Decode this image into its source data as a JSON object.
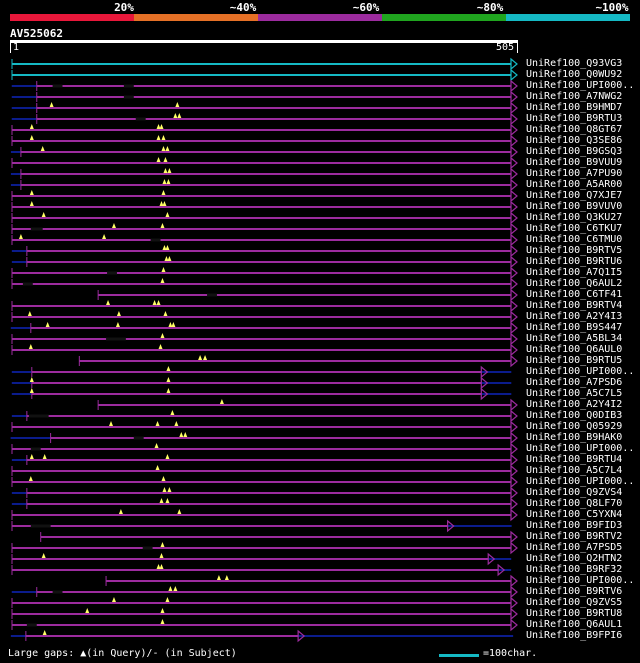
{
  "identity_legend": {
    "labels": [
      "20%",
      "~40%",
      "~60%",
      "~80%",
      "~100%"
    ],
    "colors": [
      "#e8173a",
      "#e57026",
      "#9c2b9e",
      "#20a51f",
      "#15b9c4"
    ]
  },
  "query": {
    "id": "AV525062",
    "start": "1",
    "end": "505",
    "length": 505
  },
  "hits": [
    {
      "id": "UniRef100_Q93VG3",
      "start": 1,
      "end": 505,
      "color": "#15b9c4",
      "pre": 0,
      "ins": []
    },
    {
      "id": "UniRef100_Q0WU92",
      "start": 1,
      "end": 505,
      "color": "#15b9c4",
      "pre": 0,
      "ins": []
    },
    {
      "id": "UniRef100_UPI000..",
      "start": 26,
      "end": 505,
      "color": "#9c2b9e",
      "pre": 25,
      "ins": [],
      "gaps": [
        [
          42,
          52
        ],
        [
          114,
          124
        ]
      ]
    },
    {
      "id": "UniRef100_A7NWG2",
      "start": 26,
      "end": 505,
      "color": "#9c2b9e",
      "pre": 25,
      "ins": [],
      "gaps": [
        [
          114,
          124
        ]
      ]
    },
    {
      "id": "UniRef100_B9HMD7",
      "start": 26,
      "end": 505,
      "color": "#9c2b9e",
      "pre": 25,
      "ins": [
        41,
        168
      ]
    },
    {
      "id": "UniRef100_B9RTU3",
      "start": 26,
      "end": 505,
      "color": "#9c2b9e",
      "pre": 25,
      "ins": [
        166,
        170
      ],
      "gaps": [
        [
          126,
          136
        ]
      ]
    },
    {
      "id": "UniRef100_Q8GT67",
      "start": 1,
      "end": 505,
      "color": "#9c2b9e",
      "pre": 0,
      "ins": [
        21,
        149,
        152
      ]
    },
    {
      "id": "UniRef100_Q3SE86",
      "start": 1,
      "end": 505,
      "color": "#9c2b9e",
      "pre": 0,
      "ins": [
        21,
        149,
        154
      ]
    },
    {
      "id": "UniRef100_B9GSQ3",
      "start": 10,
      "end": 505,
      "color": "#9c2b9e",
      "pre": 10,
      "ins": [
        32,
        154,
        158
      ]
    },
    {
      "id": "UniRef100_B9VUU9",
      "start": 1,
      "end": 505,
      "color": "#9c2b9e",
      "pre": 0,
      "ins": [
        149,
        156
      ]
    },
    {
      "id": "UniRef100_A7PU90",
      "start": 10,
      "end": 505,
      "color": "#9c2b9e",
      "pre": 10,
      "ins": [
        156,
        160
      ]
    },
    {
      "id": "UniRef100_A5AR00",
      "start": 10,
      "end": 505,
      "color": "#9c2b9e",
      "pre": 10,
      "ins": [
        155,
        159
      ]
    },
    {
      "id": "UniRef100_Q7XJE7",
      "start": 1,
      "end": 505,
      "color": "#9c2b9e",
      "pre": 0,
      "ins": [
        21,
        154
      ]
    },
    {
      "id": "UniRef100_B9VUV0",
      "start": 1,
      "end": 505,
      "color": "#9c2b9e",
      "pre": 0,
      "ins": [
        21,
        152,
        155
      ]
    },
    {
      "id": "UniRef100_Q3KU27",
      "start": 1,
      "end": 505,
      "color": "#9c2b9e",
      "pre": 0,
      "ins": [
        33,
        158
      ]
    },
    {
      "id": "UniRef100_C6TKU7",
      "start": 1,
      "end": 505,
      "color": "#9c2b9e",
      "pre": 0,
      "ins": [
        104,
        153
      ],
      "gaps": [
        [
          20,
          32
        ]
      ]
    },
    {
      "id": "UniRef100_C6TMU0",
      "start": 1,
      "end": 505,
      "color": "#9c2b9e",
      "pre": 0,
      "ins": [
        10,
        94
      ],
      "gaps": [
        [
          141,
          151
        ]
      ]
    },
    {
      "id": "UniRef100_B9RTV5",
      "start": 16,
      "end": 505,
      "color": "#9c2b9e",
      "pre": 15,
      "ins": [
        155,
        158
      ]
    },
    {
      "id": "UniRef100_B9RTU6",
      "start": 16,
      "end": 505,
      "color": "#9c2b9e",
      "pre": 15,
      "ins": [
        157,
        160
      ]
    },
    {
      "id": "UniRef100_A7Q1I5",
      "start": 1,
      "end": 505,
      "color": "#9c2b9e",
      "pre": 0,
      "ins": [
        154
      ],
      "gaps": [
        [
          97,
          107
        ]
      ]
    },
    {
      "id": "UniRef100_Q6AUL2",
      "start": 1,
      "end": 505,
      "color": "#9c2b9e",
      "pre": 0,
      "ins": [
        153
      ],
      "gaps": [
        [
          12,
          22
        ]
      ]
    },
    {
      "id": "UniRef100_C6TF41",
      "start": 88,
      "end": 505,
      "color": "#9c2b9e",
      "pre": 0,
      "ins": [],
      "gaps": [
        [
          198,
          208
        ]
      ]
    },
    {
      "id": "UniRef100_B9RTV4",
      "start": 1,
      "end": 505,
      "color": "#9c2b9e",
      "pre": 0,
      "ins": [
        98,
        145,
        149
      ]
    },
    {
      "id": "UniRef100_A2Y4I3",
      "start": 1,
      "end": 505,
      "color": "#9c2b9e",
      "pre": 0,
      "ins": [
        19,
        109,
        156
      ]
    },
    {
      "id": "UniRef100_B9S447",
      "start": 20,
      "end": 505,
      "color": "#9c2b9e",
      "pre": 20,
      "ins": [
        37,
        108,
        161,
        164
      ]
    },
    {
      "id": "UniRef100_A5BL34",
      "start": 1,
      "end": 505,
      "color": "#9c2b9e",
      "pre": 0,
      "ins": [
        153
      ],
      "gaps": [
        [
          96,
          116
        ]
      ]
    },
    {
      "id": "UniRef100_Q6AUL0",
      "start": 1,
      "end": 505,
      "color": "#9c2b9e",
      "pre": 0,
      "ins": [
        20,
        151
      ]
    },
    {
      "id": "UniRef100_B9RTU5",
      "start": 69,
      "end": 505,
      "color": "#9c2b9e",
      "pre": 0,
      "ins": [
        191,
        196
      ]
    },
    {
      "id": "UniRef100_UPI000..",
      "start": 21,
      "end": 475,
      "color": "#9c2b9e",
      "pre": 20,
      "ins": [
        159
      ],
      "post": 30
    },
    {
      "id": "UniRef100_A7PSD6",
      "start": 21,
      "end": 475,
      "color": "#9c2b9e",
      "pre": 20,
      "ins": [
        21,
        159
      ],
      "post": 30
    },
    {
      "id": "UniRef100_A5C7L5",
      "start": 21,
      "end": 475,
      "color": "#9c2b9e",
      "pre": 20,
      "ins": [
        21,
        159
      ],
      "post": 30
    },
    {
      "id": "UniRef100_A2Y4I2",
      "start": 88,
      "end": 505,
      "color": "#9c2b9e",
      "pre": 0,
      "ins": [
        213
      ]
    },
    {
      "id": "UniRef100_Q0DIB3",
      "start": 16,
      "end": 505,
      "color": "#9c2b9e",
      "pre": 15,
      "ins": [
        163
      ],
      "gaps": [
        [
          18,
          38
        ]
      ]
    },
    {
      "id": "UniRef100_Q05929",
      "start": 1,
      "end": 505,
      "color": "#9c2b9e",
      "pre": 0,
      "ins": [
        101,
        148,
        167
      ]
    },
    {
      "id": "UniRef100_B9HAK0",
      "start": 40,
      "end": 505,
      "color": "#9c2b9e",
      "pre": 40,
      "ins": [
        172,
        176
      ],
      "gaps": [
        [
          124,
          134
        ]
      ]
    },
    {
      "id": "UniRef100_UPI000..",
      "start": 1,
      "end": 505,
      "color": "#9c2b9e",
      "pre": 0,
      "ins": [
        147
      ],
      "gaps": [
        [
          20,
          30
        ]
      ]
    },
    {
      "id": "UniRef100_B9RTU4",
      "start": 16,
      "end": 505,
      "color": "#9c2b9e",
      "pre": 15,
      "ins": [
        21,
        34,
        158
      ]
    },
    {
      "id": "UniRef100_A5C7L4",
      "start": 1,
      "end": 505,
      "color": "#9c2b9e",
      "pre": 0,
      "ins": [
        148
      ]
    },
    {
      "id": "UniRef100_UPI000..",
      "start": 1,
      "end": 505,
      "color": "#9c2b9e",
      "pre": 0,
      "ins": [
        20,
        154
      ]
    },
    {
      "id": "UniRef100_Q9ZVS4",
      "start": 16,
      "end": 505,
      "color": "#9c2b9e",
      "pre": 15,
      "ins": [
        155,
        160
      ]
    },
    {
      "id": "UniRef100_Q8LF70",
      "start": 16,
      "end": 505,
      "color": "#9c2b9e",
      "pre": 15,
      "ins": [
        152,
        158
      ]
    },
    {
      "id": "UniRef100_C5YXN4",
      "start": 1,
      "end": 505,
      "color": "#9c2b9e",
      "pre": 0,
      "ins": [
        111,
        170
      ]
    },
    {
      "id": "UniRef100_B9FID3",
      "start": 1,
      "end": 441,
      "color": "#9c2b9e",
      "pre": 0,
      "ins": [],
      "gaps": [
        [
          20,
          40
        ]
      ],
      "post": 64
    },
    {
      "id": "UniRef100_B9RTV2",
      "start": 30,
      "end": 505,
      "color": "#9c2b9e",
      "pre": 0,
      "ins": []
    },
    {
      "id": "UniRef100_A7PSD5",
      "start": 1,
      "end": 505,
      "color": "#9c2b9e",
      "pre": 0,
      "ins": [
        153
      ],
      "gaps": [
        [
          133,
          143
        ]
      ]
    },
    {
      "id": "UniRef100_Q2HTN2",
      "start": 1,
      "end": 482,
      "color": "#9c2b9e",
      "pre": 0,
      "ins": [
        33,
        152
      ],
      "post": 23
    },
    {
      "id": "UniRef100_B9RF32",
      "start": 1,
      "end": 492,
      "color": "#9c2b9e",
      "pre": 0,
      "ins": [
        149,
        152
      ],
      "post": 13
    },
    {
      "id": "UniRef100_UPI000..",
      "start": 96,
      "end": 505,
      "color": "#9c2b9e",
      "pre": 0,
      "ins": [
        210,
        218
      ]
    },
    {
      "id": "UniRef100_B9RTV6",
      "start": 26,
      "end": 505,
      "color": "#9c2b9e",
      "pre": 25,
      "ins": [
        161,
        166
      ],
      "gaps": [
        [
          42,
          52
        ]
      ]
    },
    {
      "id": "UniRef100_Q9ZVS5",
      "start": 1,
      "end": 505,
      "color": "#9c2b9e",
      "pre": 0,
      "ins": [
        104,
        158
      ]
    },
    {
      "id": "UniRef100_B9RTU8",
      "start": 1,
      "end": 505,
      "color": "#9c2b9e",
      "pre": 0,
      "ins": [
        77,
        153
      ]
    },
    {
      "id": "UniRef100_Q6AUL1",
      "start": 1,
      "end": 505,
      "color": "#9c2b9e",
      "pre": 0,
      "ins": [
        153
      ],
      "gaps": [
        [
          16,
          26
        ]
      ]
    },
    {
      "id": "UniRef100_B9FPI6",
      "start": 15,
      "end": 290,
      "color": "#9c2b9e",
      "pre": 15,
      "ins": [
        34
      ],
      "post": 215
    }
  ],
  "footer": {
    "left": "Large gaps: ▲(in Query)/- (in Subject)",
    "right": "=100char."
  }
}
